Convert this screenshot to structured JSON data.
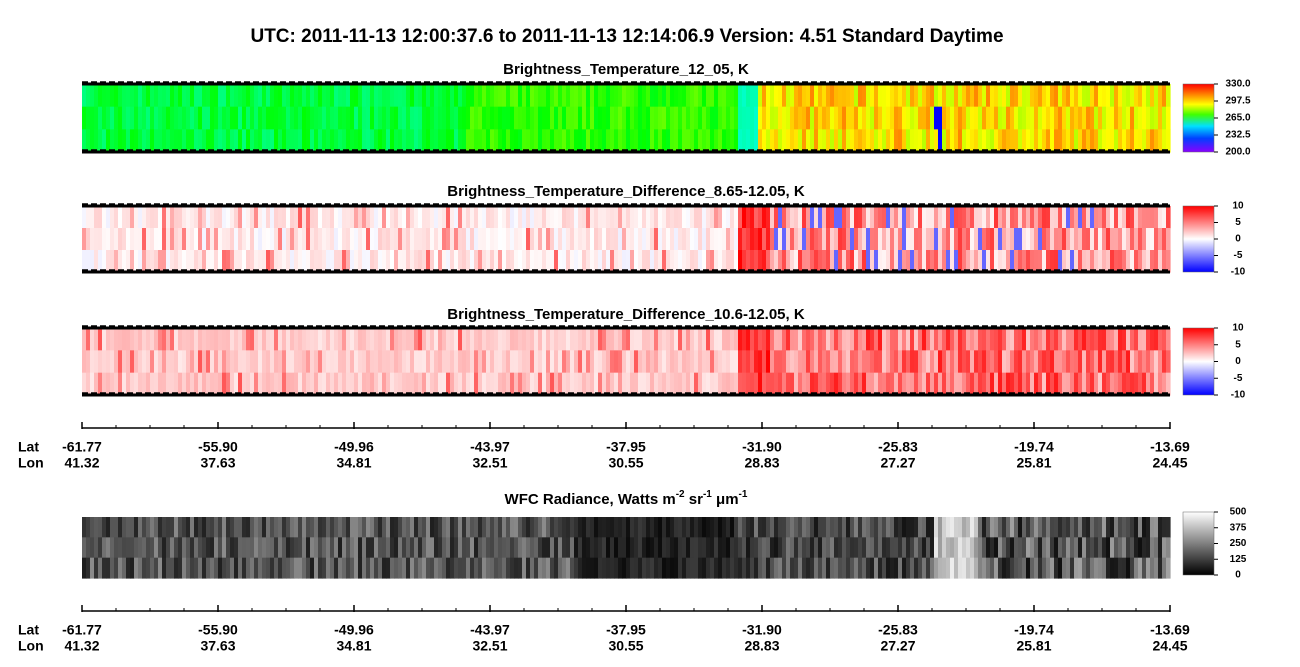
{
  "header": {
    "title": "UTC:  2011-11-13   12:00:37.6  to  2011-11-13   12:14:06.9    Version: 4.51  Standard Daytime"
  },
  "panels": [
    {
      "title": "Brightness_Temperature_12_05, K",
      "colorbar": [
        "330.0",
        "297.5",
        "265.0",
        "232.5",
        "200.0"
      ]
    },
    {
      "title": "Brightness_Temperature_Difference_8.65-12.05, K",
      "colorbar": [
        "10",
        "5",
        "0",
        "-5",
        "-10"
      ]
    },
    {
      "title": "Brightness_Temperature_Difference_10.6-12.05, K",
      "colorbar": [
        "10",
        "5",
        "0",
        "-5",
        "-10"
      ]
    },
    {
      "title": [
        {
          "text": "WFC Radiance, Watts m"
        },
        {
          "sup": "-2"
        },
        {
          "text": " sr"
        },
        {
          "sup": "-1"
        },
        {
          "text": " μm"
        },
        {
          "sup": "-1"
        }
      ],
      "colorbar": [
        "500",
        "375",
        "250",
        "125",
        "0"
      ]
    }
  ],
  "axis": {
    "lat_label": "Lat",
    "lon_label": "Lon",
    "lat": [
      "-61.77",
      "-55.90",
      "-49.96",
      "-43.97",
      "-37.95",
      "-31.90",
      "-25.83",
      "-19.74",
      "-13.69"
    ],
    "lon": [
      "41.32",
      "37.63",
      "34.81",
      "32.51",
      "30.55",
      "28.83",
      "27.27",
      "25.81",
      "24.45"
    ]
  }
}
